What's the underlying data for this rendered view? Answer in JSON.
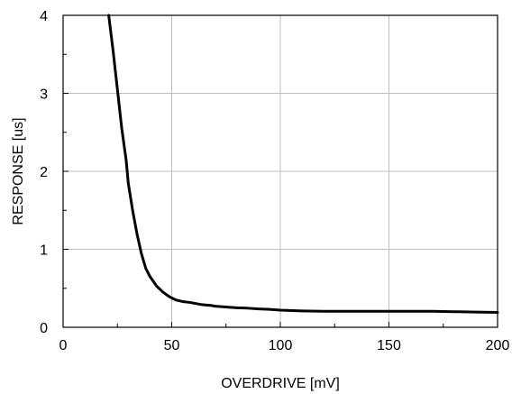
{
  "chart_data": {
    "type": "line",
    "xlabel": "OVERDRIVE [mV]",
    "ylabel": "RESPONSE  [us]",
    "xlim": [
      0,
      200
    ],
    "ylim": [
      0,
      4
    ],
    "x_ticks": [
      0,
      50,
      100,
      150,
      200
    ],
    "y_ticks": [
      0,
      1,
      2,
      3,
      4
    ],
    "x_tick_labels": [
      "0",
      "50",
      "100",
      "150",
      "200"
    ],
    "y_tick_labels": [
      "0",
      "1",
      "2",
      "3",
      "4"
    ],
    "grid": true,
    "series": [
      {
        "color": "#000000",
        "x": [
          21,
          23,
          25,
          27,
          29,
          30,
          32,
          34,
          36,
          38,
          40,
          43,
          46,
          49,
          52,
          55,
          58,
          60,
          62,
          64,
          66,
          68,
          70,
          75,
          80,
          85,
          90,
          95,
          100,
          110,
          120,
          130,
          140,
          150,
          160,
          170,
          180,
          190,
          200
        ],
        "y": [
          4.0,
          3.55,
          3.05,
          2.55,
          2.15,
          1.85,
          1.5,
          1.2,
          0.95,
          0.76,
          0.65,
          0.53,
          0.45,
          0.39,
          0.35,
          0.33,
          0.32,
          0.31,
          0.3,
          0.29,
          0.285,
          0.28,
          0.27,
          0.26,
          0.25,
          0.245,
          0.235,
          0.23,
          0.22,
          0.21,
          0.205,
          0.205,
          0.205,
          0.205,
          0.205,
          0.205,
          0.2,
          0.195,
          0.19
        ]
      }
    ]
  }
}
